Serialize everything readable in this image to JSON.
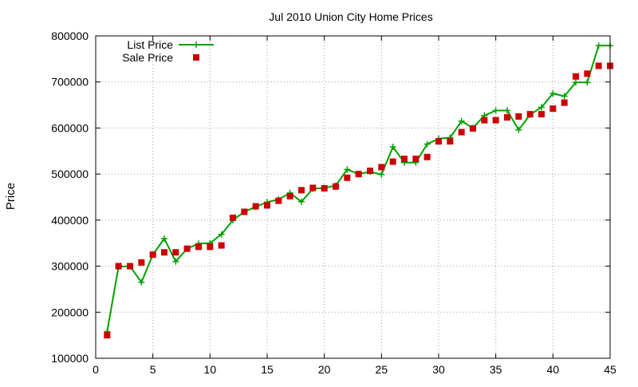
{
  "chart_data": {
    "type": "line",
    "title": "Jul 2010 Union City Home Prices",
    "xlabel": "",
    "ylabel": "Price",
    "xlim": [
      0,
      45
    ],
    "ylim": [
      100000,
      800000
    ],
    "xticks": [
      0,
      5,
      10,
      15,
      20,
      25,
      30,
      35,
      40,
      45
    ],
    "yticks": [
      100000,
      200000,
      300000,
      400000,
      500000,
      600000,
      700000,
      800000
    ],
    "grid": true,
    "legend_position": "top-left",
    "series": [
      {
        "name": "List Price",
        "style": "line-with-plus-markers",
        "color": "#00a000",
        "x": [
          1,
          2,
          3,
          4,
          5,
          6,
          7,
          8,
          9,
          10,
          11,
          12,
          13,
          14,
          15,
          16,
          17,
          18,
          19,
          20,
          21,
          22,
          23,
          24,
          25,
          26,
          27,
          28,
          29,
          30,
          31,
          32,
          33,
          34,
          35,
          36,
          37,
          38,
          39,
          40,
          41,
          42,
          43,
          44,
          45
        ],
        "values": [
          158000,
          299000,
          300000,
          265000,
          325000,
          360000,
          310000,
          338000,
          349000,
          350000,
          369000,
          400000,
          418000,
          429000,
          439000,
          445000,
          459000,
          440000,
          468000,
          470000,
          475000,
          510000,
          500000,
          505000,
          499000,
          559000,
          525000,
          525000,
          565000,
          577000,
          579000,
          615000,
          600000,
          627000,
          638000,
          638000,
          596000,
          629000,
          645000,
          675000,
          669000,
          699000,
          699000,
          779000,
          779000
        ]
      },
      {
        "name": "Sale Price",
        "style": "square-markers",
        "color": "#cc0000",
        "x": [
          1,
          2,
          3,
          4,
          5,
          6,
          7,
          8,
          9,
          10,
          11,
          12,
          13,
          14,
          15,
          16,
          17,
          18,
          19,
          20,
          21,
          22,
          23,
          24,
          25,
          26,
          27,
          28,
          29,
          30,
          31,
          32,
          33,
          34,
          35,
          36,
          37,
          38,
          39,
          40,
          41,
          42,
          43,
          44,
          45
        ],
        "values": [
          150000,
          300000,
          300000,
          308000,
          325000,
          330000,
          330000,
          338000,
          342000,
          342000,
          345000,
          405000,
          418000,
          430000,
          432000,
          442000,
          452000,
          465000,
          470000,
          469000,
          473000,
          492000,
          500000,
          507000,
          515000,
          527000,
          533000,
          533000,
          537000,
          571000,
          571000,
          591000,
          599000,
          617000,
          617000,
          623000,
          625000,
          630000,
          630000,
          642000,
          655000,
          712000,
          718000,
          735000,
          735000
        ]
      }
    ]
  }
}
